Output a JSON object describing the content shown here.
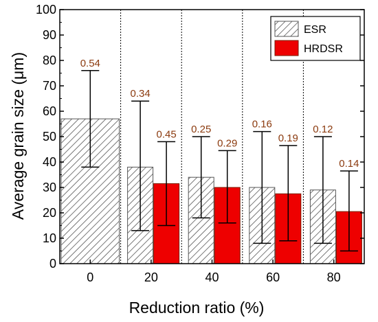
{
  "chart_data": {
    "type": "bar",
    "xlabel": "Reduction ratio (%)",
    "ylabel": "Average grain size (μm)",
    "ylim": [
      0,
      100
    ],
    "yticks": [
      0,
      10,
      20,
      30,
      40,
      50,
      60,
      70,
      80,
      90,
      100
    ],
    "categories": [
      "0",
      "20",
      "40",
      "60",
      "80"
    ],
    "grid": "vertical dotted separators between categories",
    "legend_position": "top-right",
    "series": [
      {
        "name": "ESR",
        "pattern": "diagonal-hatch",
        "color": "#555555",
        "values": [
          57,
          38,
          34,
          30,
          29
        ],
        "err_low": [
          38,
          13,
          18,
          8,
          8
        ],
        "err_high": [
          76,
          64,
          50,
          52,
          50
        ],
        "labels": [
          "0.54",
          "0.34",
          "0.25",
          "0.16",
          "0.12"
        ]
      },
      {
        "name": "HRDSR",
        "pattern": "solid",
        "color": "#ee0000",
        "values": [
          null,
          31.5,
          30,
          27.5,
          20.5
        ],
        "err_low": [
          null,
          15,
          16,
          9,
          5
        ],
        "err_high": [
          null,
          48,
          44.5,
          46.5,
          36.5
        ],
        "labels": [
          null,
          "0.45",
          "0.29",
          "0.19",
          "0.14"
        ]
      }
    ]
  }
}
